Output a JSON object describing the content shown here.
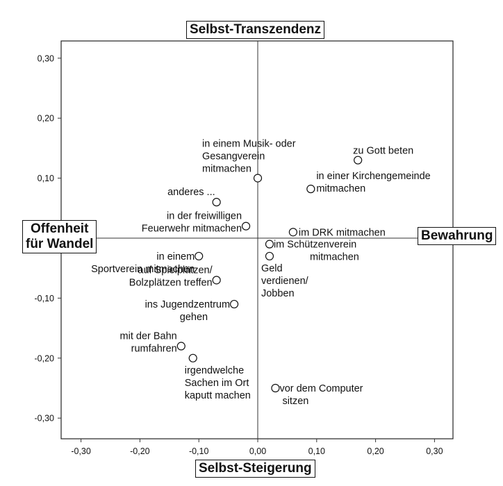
{
  "dimensions": {
    "top": "Selbst-Transzendenz",
    "bottom": "Selbst-Steigerung",
    "left_line1": "Offenheit",
    "left_line2": "für Wandel",
    "right": "Bewahrung"
  },
  "chart_data": {
    "type": "scatter",
    "xlim": [
      -0.33,
      0.33
    ],
    "ylim": [
      -0.335,
      0.335
    ],
    "x_ticks": [
      -0.3,
      -0.2,
      -0.1,
      0.0,
      0.1,
      0.2,
      0.3
    ],
    "x_tick_labels": [
      "-0,30",
      "-0,20",
      "-0,10",
      "0,00",
      "0,10",
      "0,20",
      "0,30"
    ],
    "y_ticks": [
      0.3,
      0.2,
      0.1,
      0.0,
      -0.1,
      -0.2,
      -0.3
    ],
    "y_tick_labels": [
      "0,30",
      "0,20",
      "0,10",
      "0,00",
      "-0,10",
      "-0,20",
      "-0,30"
    ],
    "reference_lines": {
      "x": 0.0,
      "y": 0.0
    },
    "grid": false,
    "points": [
      {
        "x": 0.0,
        "y": 0.1,
        "label": [
          "in einem Musik- oder",
          "Gesangverein",
          "mitmachen"
        ],
        "anchor": "above-left"
      },
      {
        "x": 0.17,
        "y": 0.13,
        "label": [
          "zu Gott beten"
        ],
        "anchor": "above-left"
      },
      {
        "x": 0.09,
        "y": 0.082,
        "label": [
          "in einer Kirchengemeinde",
          "mitmachen"
        ],
        "anchor": "right-stack"
      },
      {
        "x": -0.07,
        "y": 0.06,
        "label": [
          "anderes ..."
        ],
        "anchor": "left-up"
      },
      {
        "x": -0.02,
        "y": 0.02,
        "label": [
          "in der freiwilligen",
          "Feuerwehr mitmachen"
        ],
        "anchor": "left-stack"
      },
      {
        "x": 0.06,
        "y": 0.01,
        "label": [
          "im DRK mitmachen"
        ],
        "anchor": "right"
      },
      {
        "x": 0.02,
        "y": -0.01,
        "label": [
          "im Schützenverein",
          "mitmachen"
        ],
        "anchor": "right-stack-indent"
      },
      {
        "x": 0.02,
        "y": -0.03,
        "label": [
          "Geld",
          "verdienen/",
          "Jobben"
        ],
        "anchor": "below"
      },
      {
        "x": -0.1,
        "y": -0.03,
        "label": [
          "in einem",
          "Sportverein mitmachen"
        ],
        "anchor": "left-stack-wide"
      },
      {
        "x": -0.07,
        "y": -0.07,
        "label": [
          "auf Spielplätzen/",
          "Bolzplätzen treffen"
        ],
        "anchor": "left-stack"
      },
      {
        "x": -0.04,
        "y": -0.11,
        "label": [
          "ins Jugendzentrum",
          "gehen"
        ],
        "anchor": "left-stack-center"
      },
      {
        "x": -0.13,
        "y": -0.18,
        "label": [
          "mit der Bahn",
          "rumfahren"
        ],
        "anchor": "left-stack"
      },
      {
        "x": -0.11,
        "y": -0.2,
        "label": [
          "irgendwelche",
          "Sachen im Ort",
          "kaputt machen"
        ],
        "anchor": "below"
      },
      {
        "x": 0.03,
        "y": -0.25,
        "label": [
          "vor dem Computer",
          "sitzen"
        ],
        "anchor": "right-stack-indent"
      }
    ]
  }
}
